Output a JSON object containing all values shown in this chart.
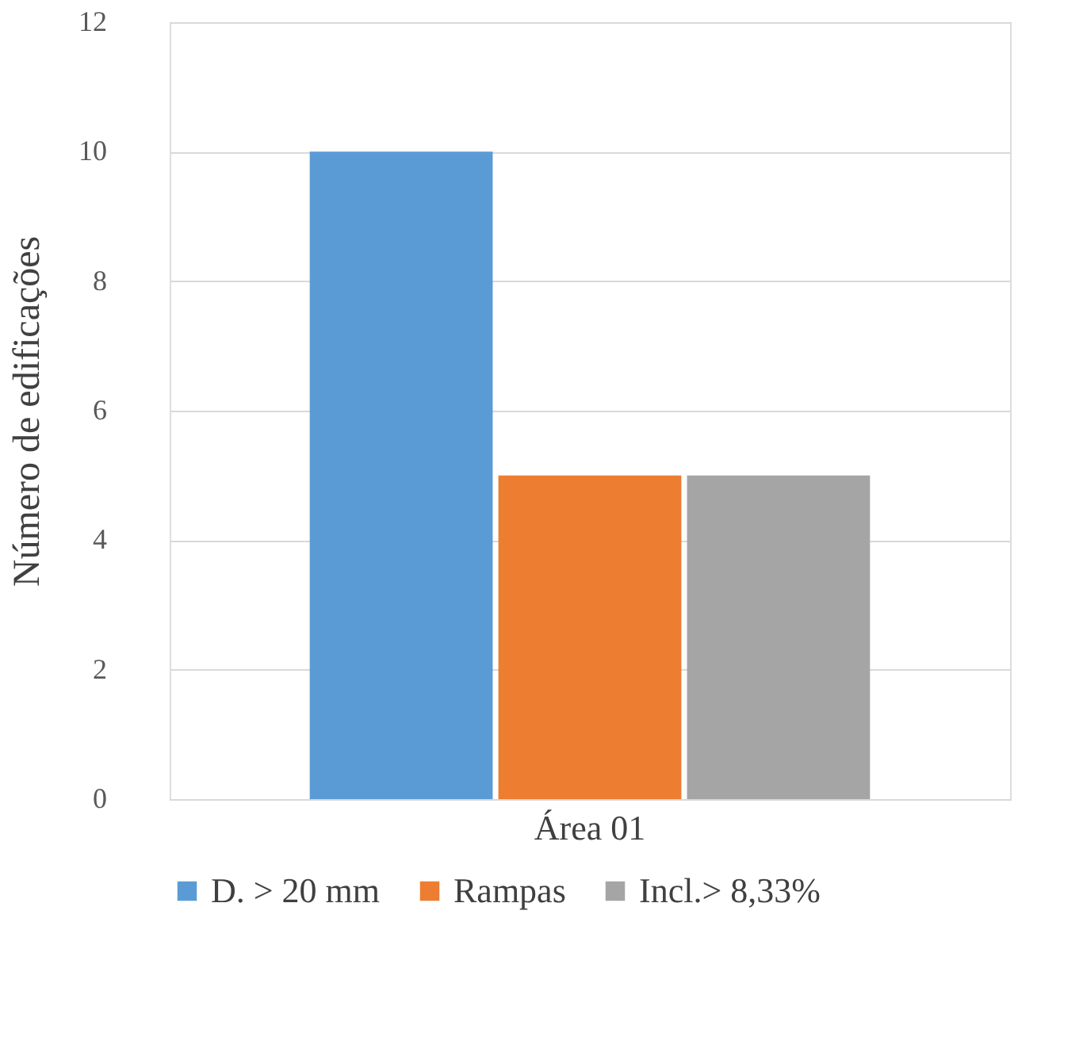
{
  "chart_data": {
    "type": "bar",
    "ylabel": "Número de edificações",
    "categories": [
      "Área 01"
    ],
    "series": [
      {
        "name": "D. > 20 mm",
        "color": "#5b9bd5",
        "values": [
          10
        ]
      },
      {
        "name": "Rampas",
        "color": "#ed7d31",
        "values": [
          5
        ]
      },
      {
        "name": "Incl.> 8,33%",
        "color": "#a5a5a5",
        "values": [
          5
        ]
      }
    ],
    "ylim": [
      0,
      12
    ],
    "yticks": [
      0,
      2,
      4,
      6,
      8,
      10,
      12
    ],
    "grid": "y",
    "legend": "bottom"
  }
}
